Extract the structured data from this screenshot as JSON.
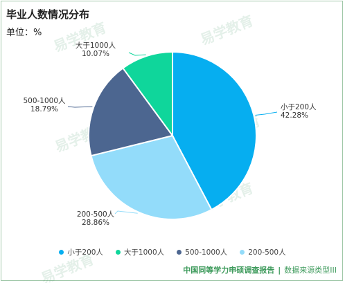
{
  "title": "毕业人数情况分布",
  "unit": "单位：%",
  "watermark": "易学教育",
  "chart_data": {
    "type": "pie",
    "categories": [
      "小于200人",
      "大于1000人",
      "500-1000人",
      "200-500人"
    ],
    "values": [
      42.28,
      10.07,
      18.79,
      28.86
    ],
    "value_labels": [
      "42.28%",
      "10.07%",
      "18.79%",
      "28.86%"
    ],
    "order": [
      "小于200人",
      "200-500人",
      "500-1000人",
      "大于1000人"
    ],
    "colors": {
      "小于200人": "#06aef0",
      "大于1000人": "#0fd69b",
      "500-1000人": "#4c6690",
      "200-500人": "#93dcfa"
    },
    "start": "12 o'clock",
    "direction": "clockwise",
    "legend_position": "bottom"
  },
  "footer": {
    "report": "中国同等学力申硕调查报告",
    "separator": "|",
    "source": "数据来源类型III"
  }
}
